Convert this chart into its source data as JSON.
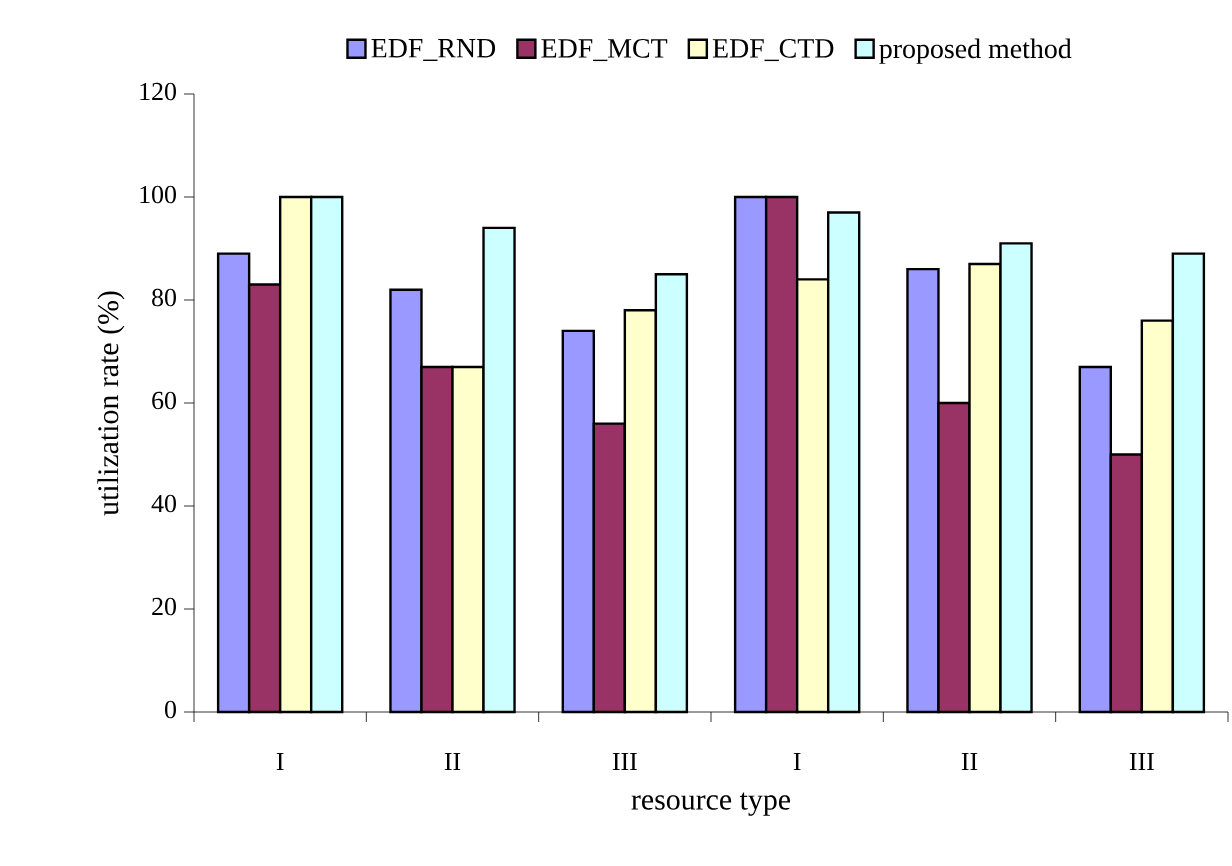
{
  "chart_data": {
    "type": "bar",
    "xlabel": "resource type",
    "ylabel": "utilization rate (%)",
    "categories": [
      "I",
      "II",
      "III",
      "I",
      "II",
      "III"
    ],
    "series": [
      {
        "name": "EDF_RND",
        "color": "#9999ff",
        "values": [
          89,
          82,
          74,
          100,
          86,
          67
        ]
      },
      {
        "name": "EDF_MCT",
        "color": "#993366",
        "values": [
          83,
          67,
          56,
          100,
          60,
          50
        ]
      },
      {
        "name": "EDF_CTD",
        "color": "#ffffcc",
        "values": [
          100,
          67,
          78,
          84,
          87,
          76
        ]
      },
      {
        "name": "proposed method",
        "color": "#ccffff",
        "values": [
          100,
          94,
          85,
          97,
          91,
          89
        ]
      }
    ],
    "ylim": [
      0,
      120
    ],
    "yticks": [
      0,
      20,
      40,
      60,
      80,
      100,
      120
    ],
    "grid": false,
    "legend": "top"
  }
}
